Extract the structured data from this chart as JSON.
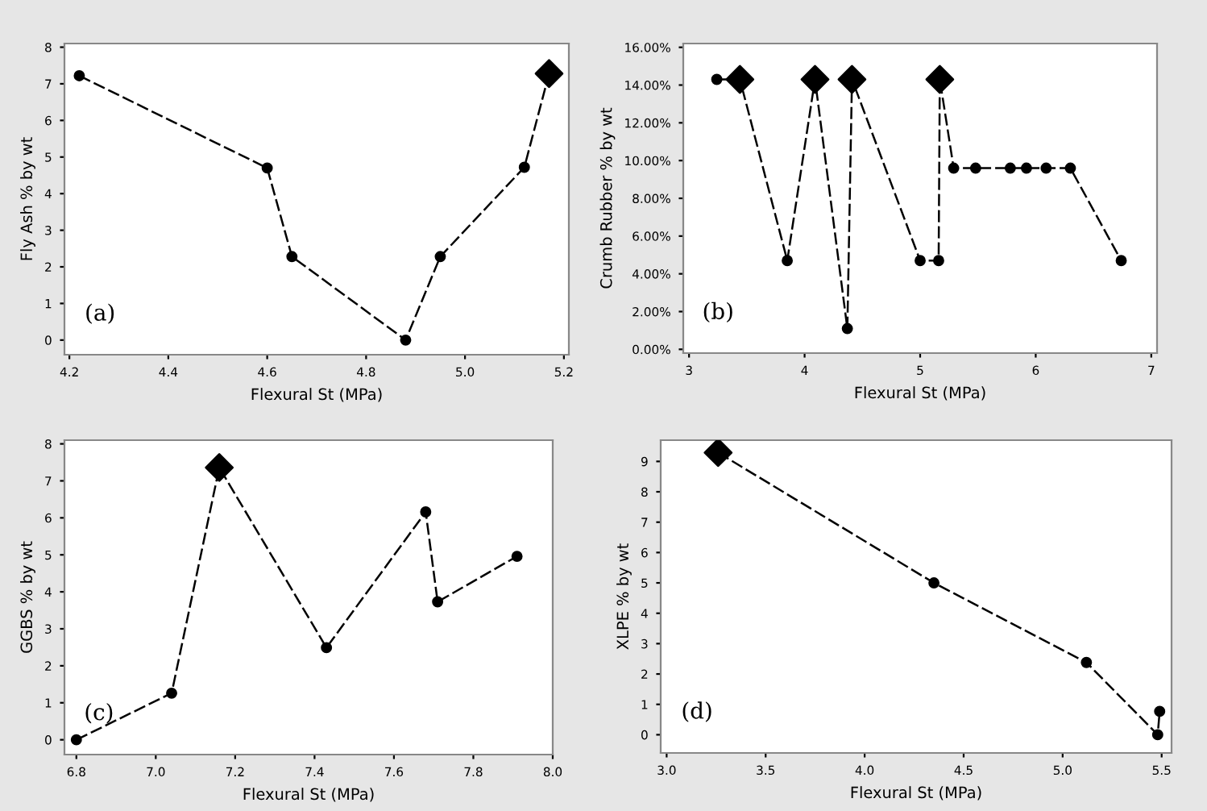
{
  "chart_data": [
    {
      "type": "line",
      "xlabel": "Flexural St (MPa)",
      "ylabel": "Fly Ash % by wt",
      "annotations": [
        "(a)"
      ],
      "xlim": [
        4.19,
        5.21
      ],
      "ylim": [
        -0.4,
        8.1
      ],
      "xticks": [
        4.2,
        4.4,
        4.6,
        4.8,
        {
          "value": 5.0,
          "label": "5.0"
        },
        5.2
      ],
      "yticks": [
        0,
        1,
        2,
        3,
        4,
        5,
        6,
        7,
        8
      ],
      "grid": false,
      "legend": false,
      "line_style": "dashed",
      "marker": "circle",
      "series": [
        {
          "color": "#000000",
          "x": [
            4.22,
            4.6,
            4.65,
            4.88,
            4.95,
            5.12,
            5.17
          ],
          "values": [
            7.22,
            4.7,
            2.28,
            0,
            2.28,
            4.72,
            7.28
          ]
        },
        {
          "type": "scatter",
          "marker": "diamond",
          "color": "#000000",
          "x": [
            5.17
          ],
          "values": [
            7.28
          ]
        }
      ]
    },
    {
      "type": "line",
      "xlabel": "Flexural St (MPa)",
      "ylabel": "Crumb Rubber % by wt",
      "annotations": [
        "(b)"
      ],
      "xlim": [
        2.95,
        7.05
      ],
      "ylim": [
        -0.2,
        16.2
      ],
      "xticks": [
        3,
        4,
        5,
        6,
        7
      ],
      "yticks": [
        {
          "value": 0,
          "label": "0.00%"
        },
        {
          "value": 2,
          "label": "2.00%"
        },
        {
          "value": 4,
          "label": "4.00%"
        },
        {
          "value": 6,
          "label": "6.00%"
        },
        {
          "value": 8,
          "label": "8.00%"
        },
        {
          "value": 10,
          "label": "10.00%"
        },
        {
          "value": 12,
          "label": "12.00%"
        },
        {
          "value": 14,
          "label": "14.00%"
        },
        {
          "value": 16,
          "label": "16.00%"
        }
      ],
      "grid": false,
      "legend": false,
      "line_style": "dashed",
      "marker": "circle",
      "series": [
        {
          "color": "#000000",
          "x": [
            3.24,
            3.44,
            3.85,
            4.09,
            4.37,
            4.41,
            5.0,
            5.16,
            5.17,
            5.29,
            5.48,
            5.78,
            5.92,
            6.09,
            6.3,
            6.74
          ],
          "values": [
            14.3,
            14.3,
            4.7,
            14.3,
            1.1,
            14.3,
            4.7,
            4.7,
            14.3,
            9.6,
            9.6,
            9.6,
            9.6,
            9.6,
            9.6,
            4.7
          ]
        },
        {
          "type": "scatter",
          "marker": "diamond",
          "color": "#000000",
          "x": [
            3.44,
            4.09,
            4.41,
            5.17
          ],
          "values": [
            14.3,
            14.3,
            14.3,
            14.3
          ]
        }
      ]
    },
    {
      "type": "line",
      "xlabel": "Flexural St (MPa)",
      "ylabel": "GGBS % by wt",
      "annotations": [
        "(c)"
      ],
      "xlim": [
        6.77,
        8.0
      ],
      "ylim": [
        -0.4,
        8.1
      ],
      "xticks": [
        6.8,
        {
          "value": 7.0,
          "label": "7.0"
        },
        7.2,
        7.4,
        7.6,
        7.8,
        {
          "value": 8.0,
          "label": "8.0"
        }
      ],
      "yticks": [
        0,
        1,
        2,
        3,
        4,
        5,
        6,
        7,
        8
      ],
      "grid": false,
      "legend": false,
      "line_style": "dashed",
      "marker": "circle",
      "series": [
        {
          "color": "#000000",
          "x": [
            6.8,
            7.04,
            7.16,
            7.43,
            7.68,
            7.71,
            7.91
          ],
          "values": [
            0,
            1.26,
            7.36,
            2.49,
            6.16,
            3.73,
            4.96
          ]
        },
        {
          "type": "scatter",
          "marker": "diamond",
          "color": "#000000",
          "x": [
            7.16
          ],
          "values": [
            7.36
          ]
        }
      ]
    },
    {
      "type": "line",
      "xlabel": "Flexural St (MPa)",
      "ylabel": "XLPE % by wt",
      "annotations": [
        "(d)"
      ],
      "xlim": [
        2.97,
        5.55
      ],
      "ylim": [
        -0.6,
        9.7
      ],
      "xticks": [
        {
          "value": 3.0,
          "label": "3.0"
        },
        3.5,
        {
          "value": 4.0,
          "label": "4.0"
        },
        4.5,
        {
          "value": 5.0,
          "label": "5.0"
        },
        5.5
      ],
      "yticks": [
        0,
        1,
        2,
        3,
        4,
        5,
        6,
        7,
        8,
        9
      ],
      "grid": false,
      "legend": false,
      "line_style": "dashed",
      "marker": "circle",
      "series": [
        {
          "color": "#000000",
          "x": [
            3.26,
            4.35,
            5.12,
            5.48,
            5.49
          ],
          "values": [
            9.29,
            5.0,
            2.38,
            0,
            0.77
          ]
        },
        {
          "type": "scatter",
          "marker": "diamond",
          "color": "#000000",
          "x": [
            3.26
          ],
          "values": [
            9.29
          ]
        }
      ]
    }
  ]
}
